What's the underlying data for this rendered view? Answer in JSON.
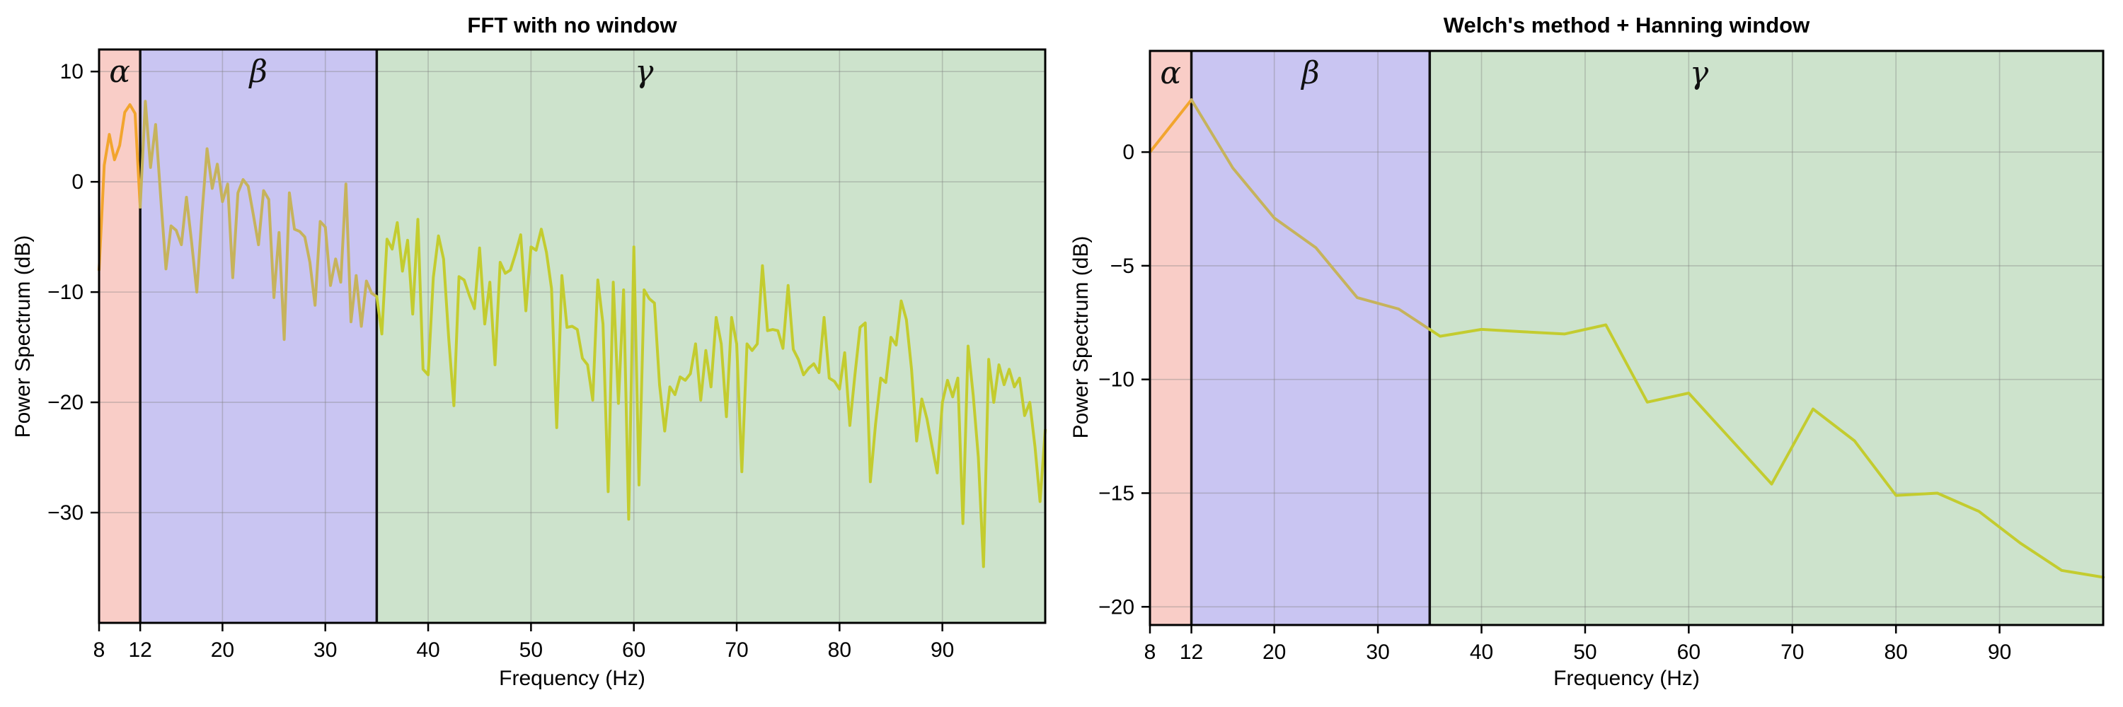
{
  "figure": {
    "background": "#ffffff"
  },
  "chart_data": [
    {
      "type": "line",
      "title": "FFT with no window",
      "xlabel": "Frequency (Hz)",
      "ylabel": "Power Spectrum (dB)",
      "xlim": [
        8,
        100
      ],
      "ylim": [
        -40,
        12
      ],
      "xticks": [
        8,
        12,
        20,
        30,
        40,
        50,
        60,
        70,
        80,
        90
      ],
      "yticks": [
        10,
        0,
        -10,
        -20,
        -30
      ],
      "grid": true,
      "legend_position": "none",
      "bands": [
        {
          "name": "alpha",
          "label": "α",
          "x_range": [
            8,
            12
          ],
          "fill": "#f9cdc7",
          "label_x": 10
        },
        {
          "name": "beta",
          "label": "β",
          "x_range": [
            12,
            35
          ],
          "fill": "#c9c5f2",
          "label_x": 23.5
        },
        {
          "name": "gamma",
          "label": "γ",
          "x_range": [
            35,
            100
          ],
          "fill": "#cde3cc",
          "label_x": 61
        }
      ],
      "band_boundary_lines_hz": [
        12,
        35
      ],
      "line_colors_by_band": {
        "alpha": "#f2a52e",
        "beta": "#c6b35c",
        "gamma": "#c3cc2f"
      },
      "series": [
        {
          "name": "fft_power_db",
          "x_start": 8,
          "x_step": 0.5,
          "values": [
            -8.0,
            1.5,
            4.3,
            2.0,
            3.3,
            6.3,
            7.0,
            6.2,
            -2.3,
            7.3,
            1.3,
            5.2,
            -1.5,
            -7.9,
            -4.0,
            -4.4,
            -5.7,
            -1.4,
            -5.5,
            -10.0,
            -3.0,
            3.0,
            -0.6,
            1.6,
            -1.8,
            -0.2,
            -8.7,
            -1.0,
            0.2,
            -0.4,
            -3.0,
            -5.7,
            -0.8,
            -1.6,
            -10.5,
            -4.6,
            -14.3,
            -1.0,
            -4.3,
            -4.5,
            -5.0,
            -7.3,
            -11.2,
            -3.6,
            -4.1,
            -9.4,
            -7.0,
            -9.1,
            -0.2,
            -12.7,
            -8.5,
            -13.1,
            -9.0,
            -10.1,
            -10.4,
            -13.8,
            -5.2,
            -6.1,
            -3.7,
            -8.1,
            -5.3,
            -12.0,
            -3.4,
            -17.0,
            -17.5,
            -8.7,
            -4.9,
            -7.0,
            -14.2,
            -20.3,
            -8.6,
            -8.9,
            -10.3,
            -11.5,
            -6.0,
            -12.9,
            -9.1,
            -16.6,
            -7.3,
            -8.3,
            -8.0,
            -6.5,
            -4.8,
            -11.7,
            -5.9,
            -6.2,
            -4.3,
            -6.4,
            -9.7,
            -22.3,
            -8.5,
            -13.2,
            -13.1,
            -13.4,
            -16.0,
            -16.6,
            -19.8,
            -8.9,
            -12.9,
            -28.1,
            -9.1,
            -20.1,
            -9.8,
            -30.6,
            -5.9,
            -27.5,
            -9.8,
            -10.6,
            -11.0,
            -18.4,
            -22.6,
            -18.6,
            -19.3,
            -17.7,
            -18.0,
            -17.4,
            -14.7,
            -19.8,
            -15.3,
            -18.6,
            -12.3,
            -14.7,
            -21.3,
            -12.3,
            -14.7,
            -26.3,
            -14.7,
            -15.3,
            -14.7,
            -7.6,
            -13.5,
            -13.4,
            -13.5,
            -15.1,
            -9.4,
            -15.2,
            -16.1,
            -17.5,
            -16.9,
            -16.5,
            -17.3,
            -12.3,
            -17.8,
            -18.1,
            -18.8,
            -15.5,
            -22.1,
            -17.5,
            -13.2,
            -12.8,
            -27.2,
            -22.0,
            -17.8,
            -18.2,
            -14.1,
            -14.8,
            -10.8,
            -12.5,
            -17.0,
            -23.5,
            -19.7,
            -21.5,
            -24.0,
            -26.4,
            -20.0,
            -18.0,
            -19.5,
            -17.8,
            -31.0,
            -14.9,
            -19.4,
            -25.0,
            -34.9,
            -16.1,
            -20.0,
            -16.6,
            -18.4,
            -17.0,
            -18.6,
            -17.8,
            -21.2,
            -20.0,
            -24.0,
            -29.0,
            -22.5
          ]
        }
      ]
    },
    {
      "type": "line",
      "title": "Welch's method + Hanning window",
      "xlabel": "Frequency (Hz)",
      "ylabel": "Power Spectrum (dB)",
      "xlim": [
        8,
        100
      ],
      "ylim": [
        -20.8,
        4.45
      ],
      "xticks": [
        8,
        12,
        20,
        30,
        40,
        50,
        60,
        70,
        80,
        90
      ],
      "yticks": [
        0,
        -5,
        -10,
        -15,
        -20
      ],
      "grid": true,
      "legend_position": "none",
      "bands": [
        {
          "name": "alpha",
          "label": "α",
          "x_range": [
            8,
            12
          ],
          "fill": "#f9cdc7",
          "label_x": 10
        },
        {
          "name": "beta",
          "label": "β",
          "x_range": [
            12,
            35
          ],
          "fill": "#c9c5f2",
          "label_x": 23.5
        },
        {
          "name": "gamma",
          "label": "γ",
          "x_range": [
            35,
            100
          ],
          "fill": "#cde3cc",
          "label_x": 61
        }
      ],
      "band_boundary_lines_hz": [
        12,
        35
      ],
      "line_colors_by_band": {
        "alpha": "#f2a52e",
        "beta": "#c6b35c",
        "gamma": "#c3cc2f"
      },
      "series": [
        {
          "name": "welch_power_db",
          "x_start": 8,
          "x_step": 4,
          "values": [
            0.0,
            2.3,
            -0.7,
            -2.9,
            -4.2,
            -6.4,
            -6.9,
            -8.1,
            -7.8,
            -7.9,
            -8.0,
            -7.6,
            -11.0,
            -10.6,
            -12.6,
            -14.6,
            -11.3,
            -12.7,
            -15.1,
            -15.0,
            -15.8,
            -17.2,
            -18.4,
            -18.7
          ]
        }
      ]
    }
  ],
  "style": {
    "grid_color": "#808080",
    "spine_color": "#000000",
    "band_line_color": "#111111",
    "tick_label_color": "#000000"
  }
}
